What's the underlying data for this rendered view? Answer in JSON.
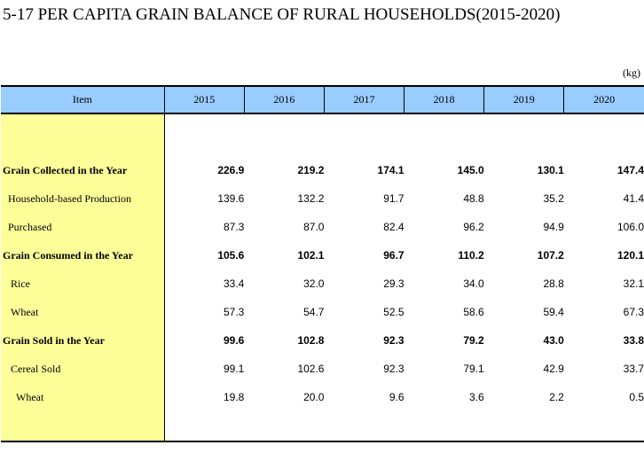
{
  "title": "5-17  PER CAPITA GRAIN BALANCE OF RURAL HOUSEHOLDS(2015-2020)",
  "unit": "(kg)",
  "table": {
    "header": {
      "item": "Item",
      "years": [
        "2015",
        "2016",
        "2017",
        "2018",
        "2019",
        "2020"
      ]
    },
    "rows": [
      {
        "label": "Grain Collected in the Year",
        "bold": true,
        "indent": 0,
        "values": [
          "226.9",
          "219.2",
          "174.1",
          "145.0",
          "130.1",
          "147.4"
        ]
      },
      {
        "label": "Household-based Production",
        "bold": false,
        "indent": 1,
        "values": [
          "139.6",
          "132.2",
          "91.7",
          "48.8",
          "35.2",
          "41.4"
        ]
      },
      {
        "label": "Purchased",
        "bold": false,
        "indent": 1,
        "values": [
          "87.3",
          "87.0",
          "82.4",
          "96.2",
          "94.9",
          "106.0"
        ]
      },
      {
        "label": "Grain Consumed in the Year",
        "bold": true,
        "indent": 0,
        "values": [
          "105.6",
          "102.1",
          "96.7",
          "110.2",
          "107.2",
          "120.1"
        ]
      },
      {
        "label": "Rice",
        "bold": false,
        "indent": 2,
        "values": [
          "33.4",
          "32.0",
          "29.3",
          "34.0",
          "28.8",
          "32.1"
        ]
      },
      {
        "label": "Wheat",
        "bold": false,
        "indent": 2,
        "values": [
          "57.3",
          "54.7",
          "52.5",
          "58.6",
          "59.4",
          "67.3"
        ]
      },
      {
        "label": "Grain Sold in the Year",
        "bold": true,
        "indent": 0,
        "values": [
          "99.6",
          "102.8",
          "92.3",
          "79.2",
          "43.0",
          "33.8"
        ]
      },
      {
        "label": "Cereal Sold",
        "bold": false,
        "indent": 2,
        "values": [
          "99.1",
          "102.6",
          "92.3",
          "79.1",
          "42.9",
          "33.7"
        ]
      },
      {
        "label": "Wheat",
        "bold": false,
        "indent": 3,
        "values": [
          "19.8",
          "20.0",
          "9.6",
          "3.6",
          "2.2",
          "0.5"
        ]
      }
    ]
  }
}
